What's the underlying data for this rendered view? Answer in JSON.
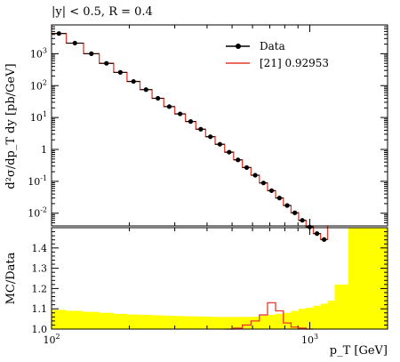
{
  "header": {
    "selection": "|y| < 0.5, R = 0.4"
  },
  "legend": {
    "items": [
      {
        "label": "Data",
        "style": "points",
        "color": "#000000"
      },
      {
        "label": "[21] 0.92953",
        "style": "line",
        "color": "#e8392a"
      }
    ]
  },
  "colors": {
    "data": "#000000",
    "mc": "#e8392a",
    "uncertainty_band": "#ffff00"
  },
  "chart_data": [
    {
      "type": "line",
      "scale": {
        "x": "log",
        "y": "log"
      },
      "ylabel": "d²σ/dp_T dy [pb/GeV]",
      "xlim": [
        100,
        2000
      ],
      "ylim": [
        0.004,
        8000
      ],
      "y_tick_labels": [
        "10^3",
        "10^2",
        "10^1",
        "1",
        "10^-1",
        "10^-2"
      ],
      "x_bin_edges": [
        100,
        114,
        133,
        153,
        174,
        196,
        220,
        245,
        272,
        300,
        330,
        362,
        395,
        430,
        468,
        507,
        548,
        592,
        638,
        686,
        737,
        790,
        846,
        905,
        967,
        1032,
        1101,
        1172
      ],
      "series": [
        {
          "name": "Data",
          "style": "points",
          "values": [
            4300,
            2150,
            1000,
            500,
            260,
            135,
            75,
            40,
            22,
            13,
            7.5,
            4.3,
            2.5,
            1.45,
            0.82,
            0.47,
            0.27,
            0.155,
            0.089,
            0.051,
            0.03,
            0.0175,
            0.0103,
            0.006,
            0.0037,
            0.0023,
            0.0015
          ]
        },
        {
          "name": "[21] 0.92953",
          "style": "step",
          "values": [
            4300,
            2150,
            1000,
            500,
            260,
            135,
            75,
            40,
            22,
            13,
            7.5,
            4.3,
            2.5,
            1.45,
            0.82,
            0.47,
            0.27,
            0.155,
            0.089,
            0.051,
            0.03,
            0.0175,
            0.0103,
            0.006,
            0.0037,
            0.0023,
            0.0015
          ]
        }
      ]
    },
    {
      "type": "area",
      "scale": {
        "x": "log",
        "y": "linear"
      },
      "xlabel": "p_T [GeV]",
      "ylabel": "MC/Data",
      "xlim": [
        100,
        2000
      ],
      "ylim": [
        1.0,
        1.5
      ],
      "x_tick_labels": [
        "10^2",
        "10^3"
      ],
      "y_tick_labels": [
        "1.0",
        "1.1",
        "1.2",
        "1.3",
        "1.4"
      ],
      "band_bin_edges": [
        100,
        114,
        133,
        153,
        174,
        196,
        220,
        245,
        272,
        300,
        330,
        362,
        395,
        430,
        468,
        507,
        548,
        592,
        638,
        686,
        737,
        790,
        846,
        905,
        967,
        1032,
        1101,
        1172,
        1248,
        1410,
        1588,
        2000
      ],
      "band_upper": [
        1.095,
        1.09,
        1.085,
        1.08,
        1.075,
        1.072,
        1.07,
        1.068,
        1.066,
        1.064,
        1.063,
        1.062,
        1.061,
        1.06,
        1.06,
        1.06,
        1.06,
        1.061,
        1.065,
        1.07,
        1.075,
        1.08,
        1.09,
        1.1,
        1.105,
        1.115,
        1.125,
        1.14,
        1.22,
        1.5,
        1.5
      ],
      "series": [
        {
          "name": "[21] 0.92953",
          "style": "step",
          "x_bin_edges": [
            468,
            507,
            548,
            592,
            638,
            686,
            737,
            790,
            846,
            905,
            967,
            1032
          ],
          "values": [
            1.0,
            1.005,
            1.02,
            1.04,
            1.07,
            1.13,
            1.09,
            1.03,
            1.01,
            1.005,
            1.0
          ]
        }
      ]
    }
  ]
}
